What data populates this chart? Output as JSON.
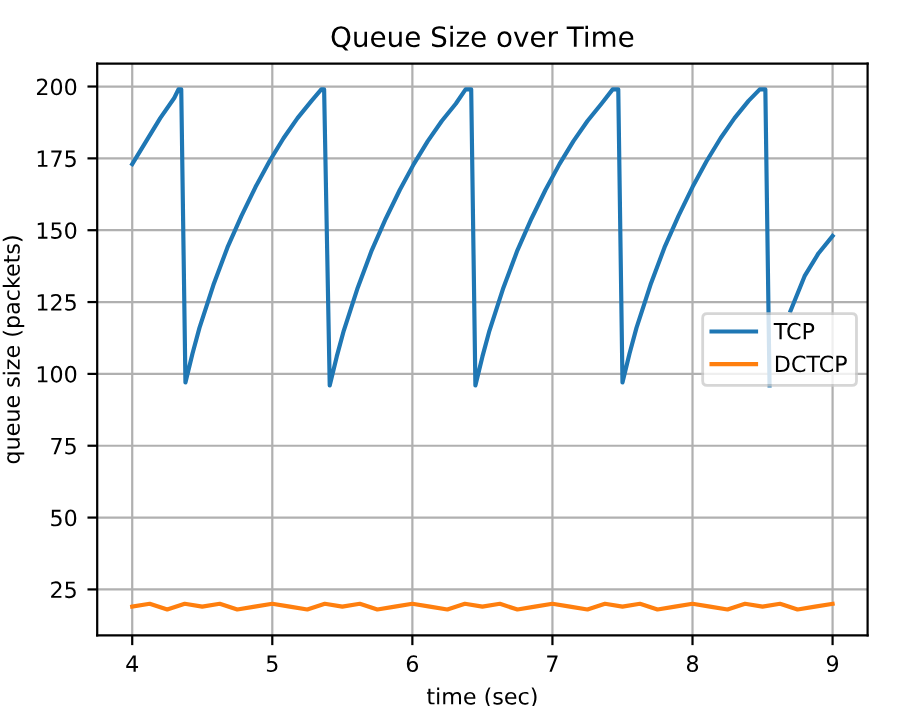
{
  "chart_data": {
    "type": "line",
    "title": "Queue Size over Time",
    "xlabel": "time (sec)",
    "ylabel": "queue size (packets)",
    "xlim": [
      3.75,
      9.25
    ],
    "xticks": [
      4,
      5,
      6,
      7,
      8,
      9
    ],
    "ylim": [
      9,
      208
    ],
    "yticks": [
      25,
      50,
      75,
      100,
      125,
      150,
      175,
      200
    ],
    "grid": true,
    "legend": "right",
    "marker": "none",
    "line_style": "solid",
    "series": [
      {
        "name": "TCP",
        "color": "#1f77b4",
        "x": [
          4.0,
          4.1,
          4.2,
          4.3,
          4.33,
          4.35,
          4.38,
          4.43,
          4.48,
          4.58,
          4.68,
          4.78,
          4.88,
          4.98,
          5.08,
          5.18,
          5.28,
          5.35,
          5.37,
          5.41,
          5.46,
          5.51,
          5.61,
          5.71,
          5.81,
          5.91,
          6.01,
          6.11,
          6.21,
          6.31,
          6.38,
          6.42,
          6.45,
          6.5,
          6.55,
          6.65,
          6.75,
          6.85,
          6.95,
          7.05,
          7.15,
          7.25,
          7.35,
          7.43,
          7.47,
          7.5,
          7.55,
          7.6,
          7.7,
          7.8,
          7.9,
          8.0,
          8.1,
          8.2,
          8.3,
          8.4,
          8.48,
          8.52,
          8.55,
          8.6,
          8.7,
          8.8,
          8.9,
          9.0
        ],
        "values": [
          173,
          181,
          189,
          196,
          199,
          199,
          97,
          107,
          116,
          131,
          144,
          155,
          165,
          174,
          182,
          189,
          195,
          199,
          199,
          96,
          106,
          115,
          130,
          143,
          154,
          164,
          173,
          181,
          188,
          194,
          199,
          199,
          96,
          106,
          115,
          130,
          143,
          154,
          164,
          173,
          181,
          188,
          194,
          199,
          199,
          97,
          107,
          116,
          131,
          144,
          155,
          165,
          174,
          182,
          189,
          195,
          199,
          199,
          96,
          null,
          122,
          134,
          142,
          148
        ]
      },
      {
        "name": "DCTCP",
        "color": "#ff7f0e",
        "x": [
          4.0,
          4.125,
          4.25,
          4.375,
          4.5,
          4.625,
          4.75,
          4.875,
          5.0,
          5.125,
          5.25,
          5.375,
          5.5,
          5.625,
          5.75,
          5.875,
          6.0,
          6.125,
          6.25,
          6.375,
          6.5,
          6.625,
          6.75,
          6.875,
          7.0,
          7.125,
          7.25,
          7.375,
          7.5,
          7.625,
          7.75,
          7.875,
          8.0,
          8.125,
          8.25,
          8.375,
          8.5,
          8.625,
          8.75,
          8.875,
          9.0
        ],
        "values": [
          19,
          20,
          18,
          20,
          19,
          20,
          18,
          19,
          20,
          19,
          18,
          20,
          19,
          20,
          18,
          19,
          20,
          19,
          18,
          20,
          19,
          20,
          18,
          19,
          20,
          19,
          18,
          20,
          19,
          20,
          18,
          19,
          20,
          19,
          18,
          20,
          19,
          20,
          18,
          19,
          20
        ]
      }
    ]
  }
}
